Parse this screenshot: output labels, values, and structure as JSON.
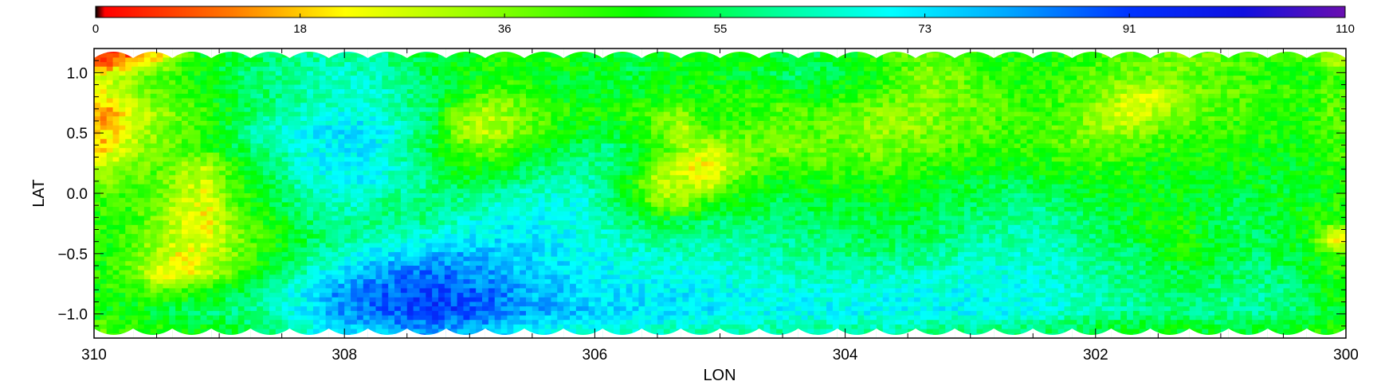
{
  "chart_data": {
    "type": "heatmap",
    "title": "",
    "xlabel": "LON",
    "ylabel": "LAT",
    "xlim": [
      310,
      300
    ],
    "ylim": [
      -1.2,
      1.2
    ],
    "x_ticks": [
      310,
      308,
      306,
      304,
      302,
      300
    ],
    "x_tick_labels": [
      "310",
      "308",
      "306",
      "304",
      "302",
      "300"
    ],
    "y_ticks": [
      1.0,
      0.5,
      0.0,
      -0.5,
      -1.0
    ],
    "y_tick_labels": [
      "1.0",
      "0.5",
      "0.0",
      "−0.5",
      "−1.0"
    ],
    "colorbar": {
      "position": "top",
      "range": [
        0,
        110
      ],
      "tick_values": [
        0,
        18,
        36,
        55,
        73,
        91,
        110
      ],
      "tick_labels": [
        "0",
        "18",
        "36",
        "55",
        "73",
        "91",
        "110"
      ],
      "colormap": [
        {
          "value": 0,
          "color": "#000000"
        },
        {
          "value": 0.8,
          "color": "#ff0000"
        },
        {
          "value": 12,
          "color": "#ff7a00"
        },
        {
          "value": 22,
          "color": "#ffff00"
        },
        {
          "value": 36,
          "color": "#7fff00"
        },
        {
          "value": 48,
          "color": "#00ff00"
        },
        {
          "value": 60,
          "color": "#00ff99"
        },
        {
          "value": 70,
          "color": "#00ffff"
        },
        {
          "value": 80,
          "color": "#00aaff"
        },
        {
          "value": 91,
          "color": "#0033ff"
        },
        {
          "value": 101,
          "color": "#1010e0"
        },
        {
          "value": 110,
          "color": "#6a0fb0"
        }
      ]
    },
    "grid": {
      "cols": 50,
      "rows": 16,
      "x_range": [
        310,
        300
      ],
      "y_range": [
        -1.2,
        1.2
      ],
      "values": [
        [
          3,
          10,
          20,
          40,
          50,
          52,
          55,
          58,
          60,
          62,
          62,
          60,
          56,
          52,
          48,
          46,
          44,
          45,
          47,
          48,
          50,
          52,
          50,
          48,
          46,
          48,
          50,
          52,
          54,
          52,
          48,
          44,
          40,
          38,
          40,
          44,
          46,
          48,
          46,
          44,
          42,
          40,
          38,
          36,
          38,
          40,
          42,
          44,
          45,
          30
        ],
        [
          25,
          35,
          40,
          45,
          50,
          55,
          58,
          60,
          62,
          64,
          64,
          62,
          58,
          55,
          50,
          48,
          46,
          48,
          50,
          50,
          52,
          54,
          52,
          50,
          48,
          50,
          52,
          54,
          56,
          54,
          50,
          45,
          40,
          35,
          38,
          42,
          45,
          46,
          44,
          42,
          40,
          38,
          36,
          38,
          40,
          42,
          44,
          45,
          46,
          42
        ],
        [
          25,
          35,
          40,
          42,
          48,
          52,
          56,
          58,
          62,
          64,
          66,
          64,
          60,
          55,
          50,
          42,
          40,
          44,
          48,
          50,
          50,
          50,
          48,
          48,
          46,
          44,
          44,
          46,
          48,
          46,
          44,
          42,
          38,
          36,
          38,
          40,
          42,
          44,
          42,
          40,
          36,
          26,
          28,
          34,
          38,
          40,
          42,
          44,
          45,
          40
        ],
        [
          15,
          25,
          32,
          38,
          44,
          50,
          56,
          60,
          64,
          66,
          68,
          64,
          60,
          55,
          38,
          30,
          34,
          40,
          44,
          46,
          48,
          44,
          40,
          36,
          46,
          44,
          42,
          40,
          42,
          40,
          38,
          36,
          34,
          36,
          38,
          40,
          42,
          44,
          42,
          38,
          28,
          26,
          30,
          36,
          40,
          42,
          44,
          45,
          46,
          40
        ],
        [
          18,
          28,
          34,
          40,
          46,
          54,
          62,
          66,
          70,
          72,
          74,
          70,
          62,
          56,
          36,
          28,
          32,
          40,
          46,
          50,
          52,
          48,
          40,
          28,
          42,
          42,
          40,
          38,
          40,
          38,
          36,
          34,
          34,
          36,
          38,
          40,
          42,
          42,
          40,
          36,
          32,
          34,
          38,
          40,
          42,
          44,
          45,
          46,
          46,
          40
        ],
        [
          20,
          30,
          38,
          42,
          44,
          52,
          58,
          62,
          68,
          70,
          72,
          68,
          60,
          54,
          42,
          38,
          42,
          48,
          52,
          56,
          58,
          52,
          44,
          34,
          30,
          36,
          38,
          36,
          38,
          40,
          38,
          36,
          38,
          40,
          42,
          42,
          44,
          44,
          42,
          40,
          40,
          42,
          44,
          45,
          46,
          46,
          47,
          48,
          48,
          42
        ],
        [
          30,
          36,
          40,
          34,
          30,
          44,
          52,
          60,
          66,
          70,
          72,
          68,
          62,
          56,
          48,
          46,
          50,
          54,
          58,
          60,
          58,
          50,
          36,
          24,
          20,
          30,
          40,
          44,
          42,
          40,
          42,
          40,
          42,
          44,
          46,
          46,
          48,
          48,
          46,
          44,
          44,
          46,
          48,
          48,
          48,
          48,
          49,
          50,
          50,
          44
        ],
        [
          38,
          42,
          40,
          32,
          26,
          42,
          50,
          58,
          64,
          68,
          70,
          66,
          62,
          58,
          54,
          54,
          58,
          62,
          64,
          64,
          58,
          46,
          28,
          32,
          26,
          40,
          46,
          50,
          48,
          46,
          48,
          46,
          48,
          50,
          52,
          52,
          54,
          54,
          52,
          50,
          48,
          48,
          50,
          50,
          50,
          50,
          50,
          52,
          52,
          46
        ],
        [
          42,
          44,
          38,
          28,
          24,
          40,
          48,
          54,
          60,
          64,
          64,
          60,
          58,
          58,
          60,
          62,
          66,
          68,
          68,
          66,
          60,
          48,
          36,
          32,
          44,
          50,
          52,
          54,
          52,
          50,
          52,
          50,
          50,
          52,
          54,
          56,
          58,
          58,
          56,
          54,
          52,
          50,
          48,
          50,
          52,
          54,
          52,
          50,
          50,
          46
        ],
        [
          44,
          44,
          36,
          26,
          22,
          36,
          44,
          50,
          56,
          60,
          60,
          58,
          58,
          60,
          64,
          66,
          70,
          70,
          68,
          66,
          62,
          56,
          52,
          54,
          56,
          56,
          56,
          58,
          56,
          54,
          54,
          52,
          52,
          54,
          56,
          58,
          60,
          62,
          60,
          56,
          54,
          50,
          46,
          48,
          52,
          56,
          54,
          50,
          48,
          44
        ],
        [
          46,
          42,
          34,
          28,
          24,
          34,
          42,
          48,
          54,
          58,
          62,
          64,
          66,
          68,
          70,
          72,
          74,
          72,
          70,
          68,
          66,
          62,
          60,
          60,
          62,
          62,
          60,
          60,
          58,
          56,
          56,
          54,
          54,
          56,
          58,
          60,
          62,
          64,
          62,
          58,
          56,
          52,
          48,
          46,
          50,
          54,
          56,
          52,
          48,
          20
        ],
        [
          46,
          40,
          30,
          22,
          26,
          36,
          44,
          50,
          58,
          64,
          70,
          74,
          76,
          78,
          80,
          78,
          76,
          74,
          72,
          70,
          68,
          66,
          64,
          64,
          64,
          64,
          62,
          62,
          60,
          60,
          58,
          58,
          58,
          60,
          62,
          64,
          64,
          66,
          64,
          60,
          58,
          56,
          52,
          48,
          50,
          54,
          56,
          54,
          50,
          44
        ],
        [
          44,
          38,
          26,
          22,
          30,
          40,
          48,
          56,
          64,
          72,
          78,
          82,
          84,
          86,
          84,
          82,
          78,
          76,
          74,
          72,
          70,
          68,
          68,
          68,
          68,
          66,
          66,
          64,
          64,
          64,
          64,
          64,
          64,
          66,
          66,
          68,
          68,
          66,
          64,
          62,
          60,
          58,
          56,
          54,
          54,
          56,
          58,
          56,
          52,
          46
        ],
        [
          46,
          44,
          42,
          44,
          48,
          54,
          58,
          64,
          72,
          80,
          84,
          86,
          88,
          90,
          88,
          86,
          82,
          78,
          76,
          74,
          72,
          72,
          72,
          72,
          70,
          70,
          68,
          68,
          68,
          68,
          68,
          68,
          68,
          68,
          70,
          70,
          70,
          68,
          66,
          64,
          62,
          60,
          58,
          56,
          58,
          60,
          60,
          58,
          54,
          48
        ],
        [
          48,
          50,
          52,
          54,
          56,
          58,
          60,
          64,
          72,
          80,
          84,
          86,
          90,
          92,
          90,
          88,
          84,
          80,
          78,
          76,
          74,
          74,
          74,
          74,
          72,
          72,
          70,
          70,
          70,
          70,
          70,
          70,
          70,
          70,
          70,
          70,
          70,
          68,
          66,
          64,
          62,
          60,
          58,
          58,
          60,
          60,
          60,
          58,
          56,
          50
        ],
        [
          40,
          44,
          46,
          48,
          50,
          52,
          56,
          60,
          66,
          72,
          76,
          78,
          80,
          82,
          80,
          78,
          74,
          72,
          70,
          68,
          66,
          66,
          66,
          64,
          64,
          62,
          62,
          62,
          62,
          62,
          62,
          62,
          60,
          60,
          60,
          60,
          58,
          58,
          56,
          54,
          52,
          50,
          50,
          50,
          52,
          52,
          52,
          50,
          48,
          44
        ]
      ]
    }
  }
}
